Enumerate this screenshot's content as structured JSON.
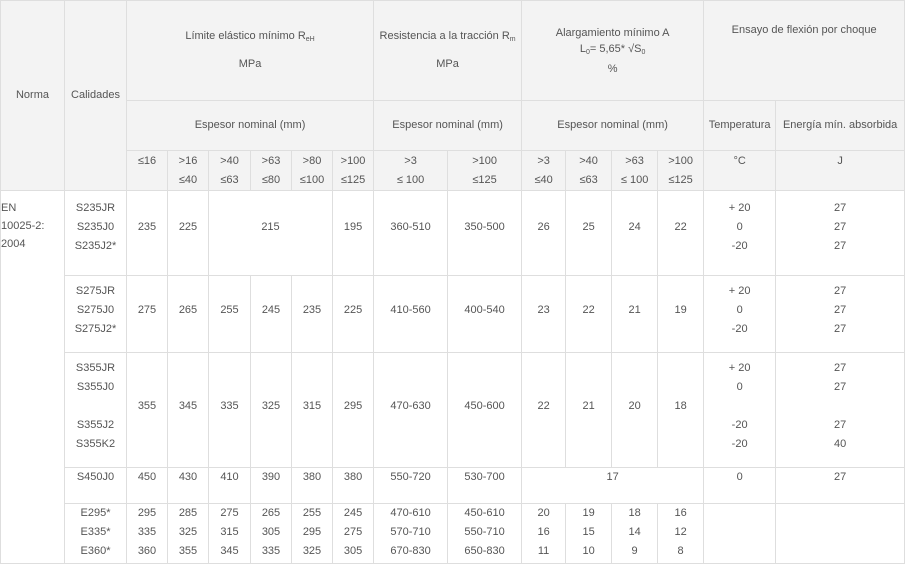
{
  "header": {
    "norma": "Norma",
    "calidades": "Calidades",
    "yield": {
      "title": "Límite elástico mínimo R",
      "sub": "eH",
      "unit": "MPa"
    },
    "tensile": {
      "title": "Resistencia a la tracción R",
      "sub": "m",
      "unit": "MPa"
    },
    "elong": {
      "title": "Alargamiento mínimo A",
      "formula": [
        {
          "t": "L"
        },
        {
          "s": "0"
        },
        {
          "t": "= 5,65* √"
        },
        {
          "t": "S"
        },
        {
          "s": "0"
        }
      ],
      "unit": "%"
    },
    "impact": {
      "title": "Ensayo de flexión por choque"
    },
    "thickness": "Espesor nominal (mm)",
    "temperature": "Temperatura",
    "energy": "Energía mín. absorbida",
    "sub_columns": [
      [
        "≤16"
      ],
      [
        ">16",
        "≤40"
      ],
      [
        ">40",
        "≤63"
      ],
      [
        ">63",
        "≤80"
      ],
      [
        ">80",
        "≤100"
      ],
      [
        ">100",
        "≤125"
      ],
      [
        ">3",
        "≤ 100"
      ],
      [
        ">100",
        "≤125"
      ],
      [
        ">3",
        "≤40"
      ],
      [
        ">40",
        "≤63"
      ],
      [
        ">63",
        "≤ 100"
      ],
      [
        ">100",
        "≤125"
      ],
      [
        "°C"
      ],
      [
        "J"
      ]
    ]
  },
  "norma": [
    "EN",
    "10025-2:",
    "2004"
  ],
  "groups": [
    {
      "grades": [
        "S235JR",
        "S235J0",
        "S235J2*"
      ],
      "cells": [
        {
          "v": [
            "235"
          ]
        },
        {
          "v": [
            "225"
          ]
        },
        {
          "v": [
            "215"
          ],
          "span": 3
        },
        {
          "v": [
            "195"
          ]
        },
        {
          "v": [
            "360-510"
          ]
        },
        {
          "v": [
            "350-500"
          ]
        },
        {
          "v": [
            "26"
          ]
        },
        {
          "v": [
            "25"
          ]
        },
        {
          "v": [
            "24"
          ]
        },
        {
          "v": [
            "22"
          ]
        },
        {
          "v": [
            "+ 20",
            "0",
            "-20"
          ]
        },
        {
          "v": [
            "27",
            "27",
            "27"
          ]
        }
      ]
    },
    {
      "grades": [
        "S275JR",
        "S275J0",
        "S275J2*"
      ],
      "cells": [
        {
          "v": [
            "275"
          ]
        },
        {
          "v": [
            "265"
          ]
        },
        {
          "v": [
            "255"
          ]
        },
        {
          "v": [
            "245"
          ]
        },
        {
          "v": [
            "235"
          ]
        },
        {
          "v": [
            "225"
          ]
        },
        {
          "v": [
            "410-560"
          ]
        },
        {
          "v": [
            "400-540"
          ]
        },
        {
          "v": [
            "23"
          ]
        },
        {
          "v": [
            "22"
          ]
        },
        {
          "v": [
            "21"
          ]
        },
        {
          "v": [
            "19"
          ]
        },
        {
          "v": [
            "+ 20",
            "0",
            "-20"
          ]
        },
        {
          "v": [
            "27",
            "27",
            "27"
          ]
        }
      ]
    },
    {
      "grades": [
        "S355JR",
        "S355J0",
        "",
        "S355J2",
        "S355K2"
      ],
      "cells": [
        {
          "v": [
            "355"
          ]
        },
        {
          "v": [
            "345"
          ]
        },
        {
          "v": [
            "335"
          ]
        },
        {
          "v": [
            "325"
          ]
        },
        {
          "v": [
            "315"
          ]
        },
        {
          "v": [
            "295"
          ]
        },
        {
          "v": [
            "470-630"
          ]
        },
        {
          "v": [
            "450-600"
          ]
        },
        {
          "v": [
            "22"
          ]
        },
        {
          "v": [
            "21"
          ]
        },
        {
          "v": [
            "20"
          ]
        },
        {
          "v": [
            "18"
          ]
        },
        {
          "v": [
            "+ 20",
            "0",
            "",
            "-20",
            "-20"
          ]
        },
        {
          "v": [
            "27",
            "27",
            "",
            "27",
            "40"
          ]
        }
      ]
    },
    {
      "grades": [
        "S450J0"
      ],
      "cells": [
        {
          "v": [
            "450"
          ]
        },
        {
          "v": [
            "430"
          ]
        },
        {
          "v": [
            "410"
          ]
        },
        {
          "v": [
            "390"
          ]
        },
        {
          "v": [
            "380"
          ]
        },
        {
          "v": [
            "380"
          ]
        },
        {
          "v": [
            "550-720"
          ]
        },
        {
          "v": [
            "530-700"
          ]
        },
        {
          "v": [
            "17"
          ],
          "span": 4
        },
        {
          "v": [
            "0"
          ]
        },
        {
          "v": [
            "27"
          ]
        }
      ]
    },
    {
      "grades": [
        "E295*",
        "E335*",
        "E360*"
      ],
      "cells": [
        {
          "v": [
            "295",
            "335",
            "360"
          ]
        },
        {
          "v": [
            "285",
            "325",
            "355"
          ]
        },
        {
          "v": [
            "275",
            "315",
            "345"
          ]
        },
        {
          "v": [
            "265",
            "305",
            "335"
          ]
        },
        {
          "v": [
            "255",
            "295",
            "325"
          ]
        },
        {
          "v": [
            "245",
            "275",
            "305"
          ]
        },
        {
          "v": [
            "470-610",
            "570-710",
            "670-830"
          ]
        },
        {
          "v": [
            "450-610",
            "550-710",
            "650-830"
          ]
        },
        {
          "v": [
            "20",
            "16",
            "11"
          ]
        },
        {
          "v": [
            "19",
            "15",
            "10"
          ]
        },
        {
          "v": [
            "18",
            "14",
            "9"
          ]
        },
        {
          "v": [
            "16",
            "12",
            "8"
          ]
        },
        {
          "v": []
        },
        {
          "v": []
        }
      ]
    }
  ]
}
